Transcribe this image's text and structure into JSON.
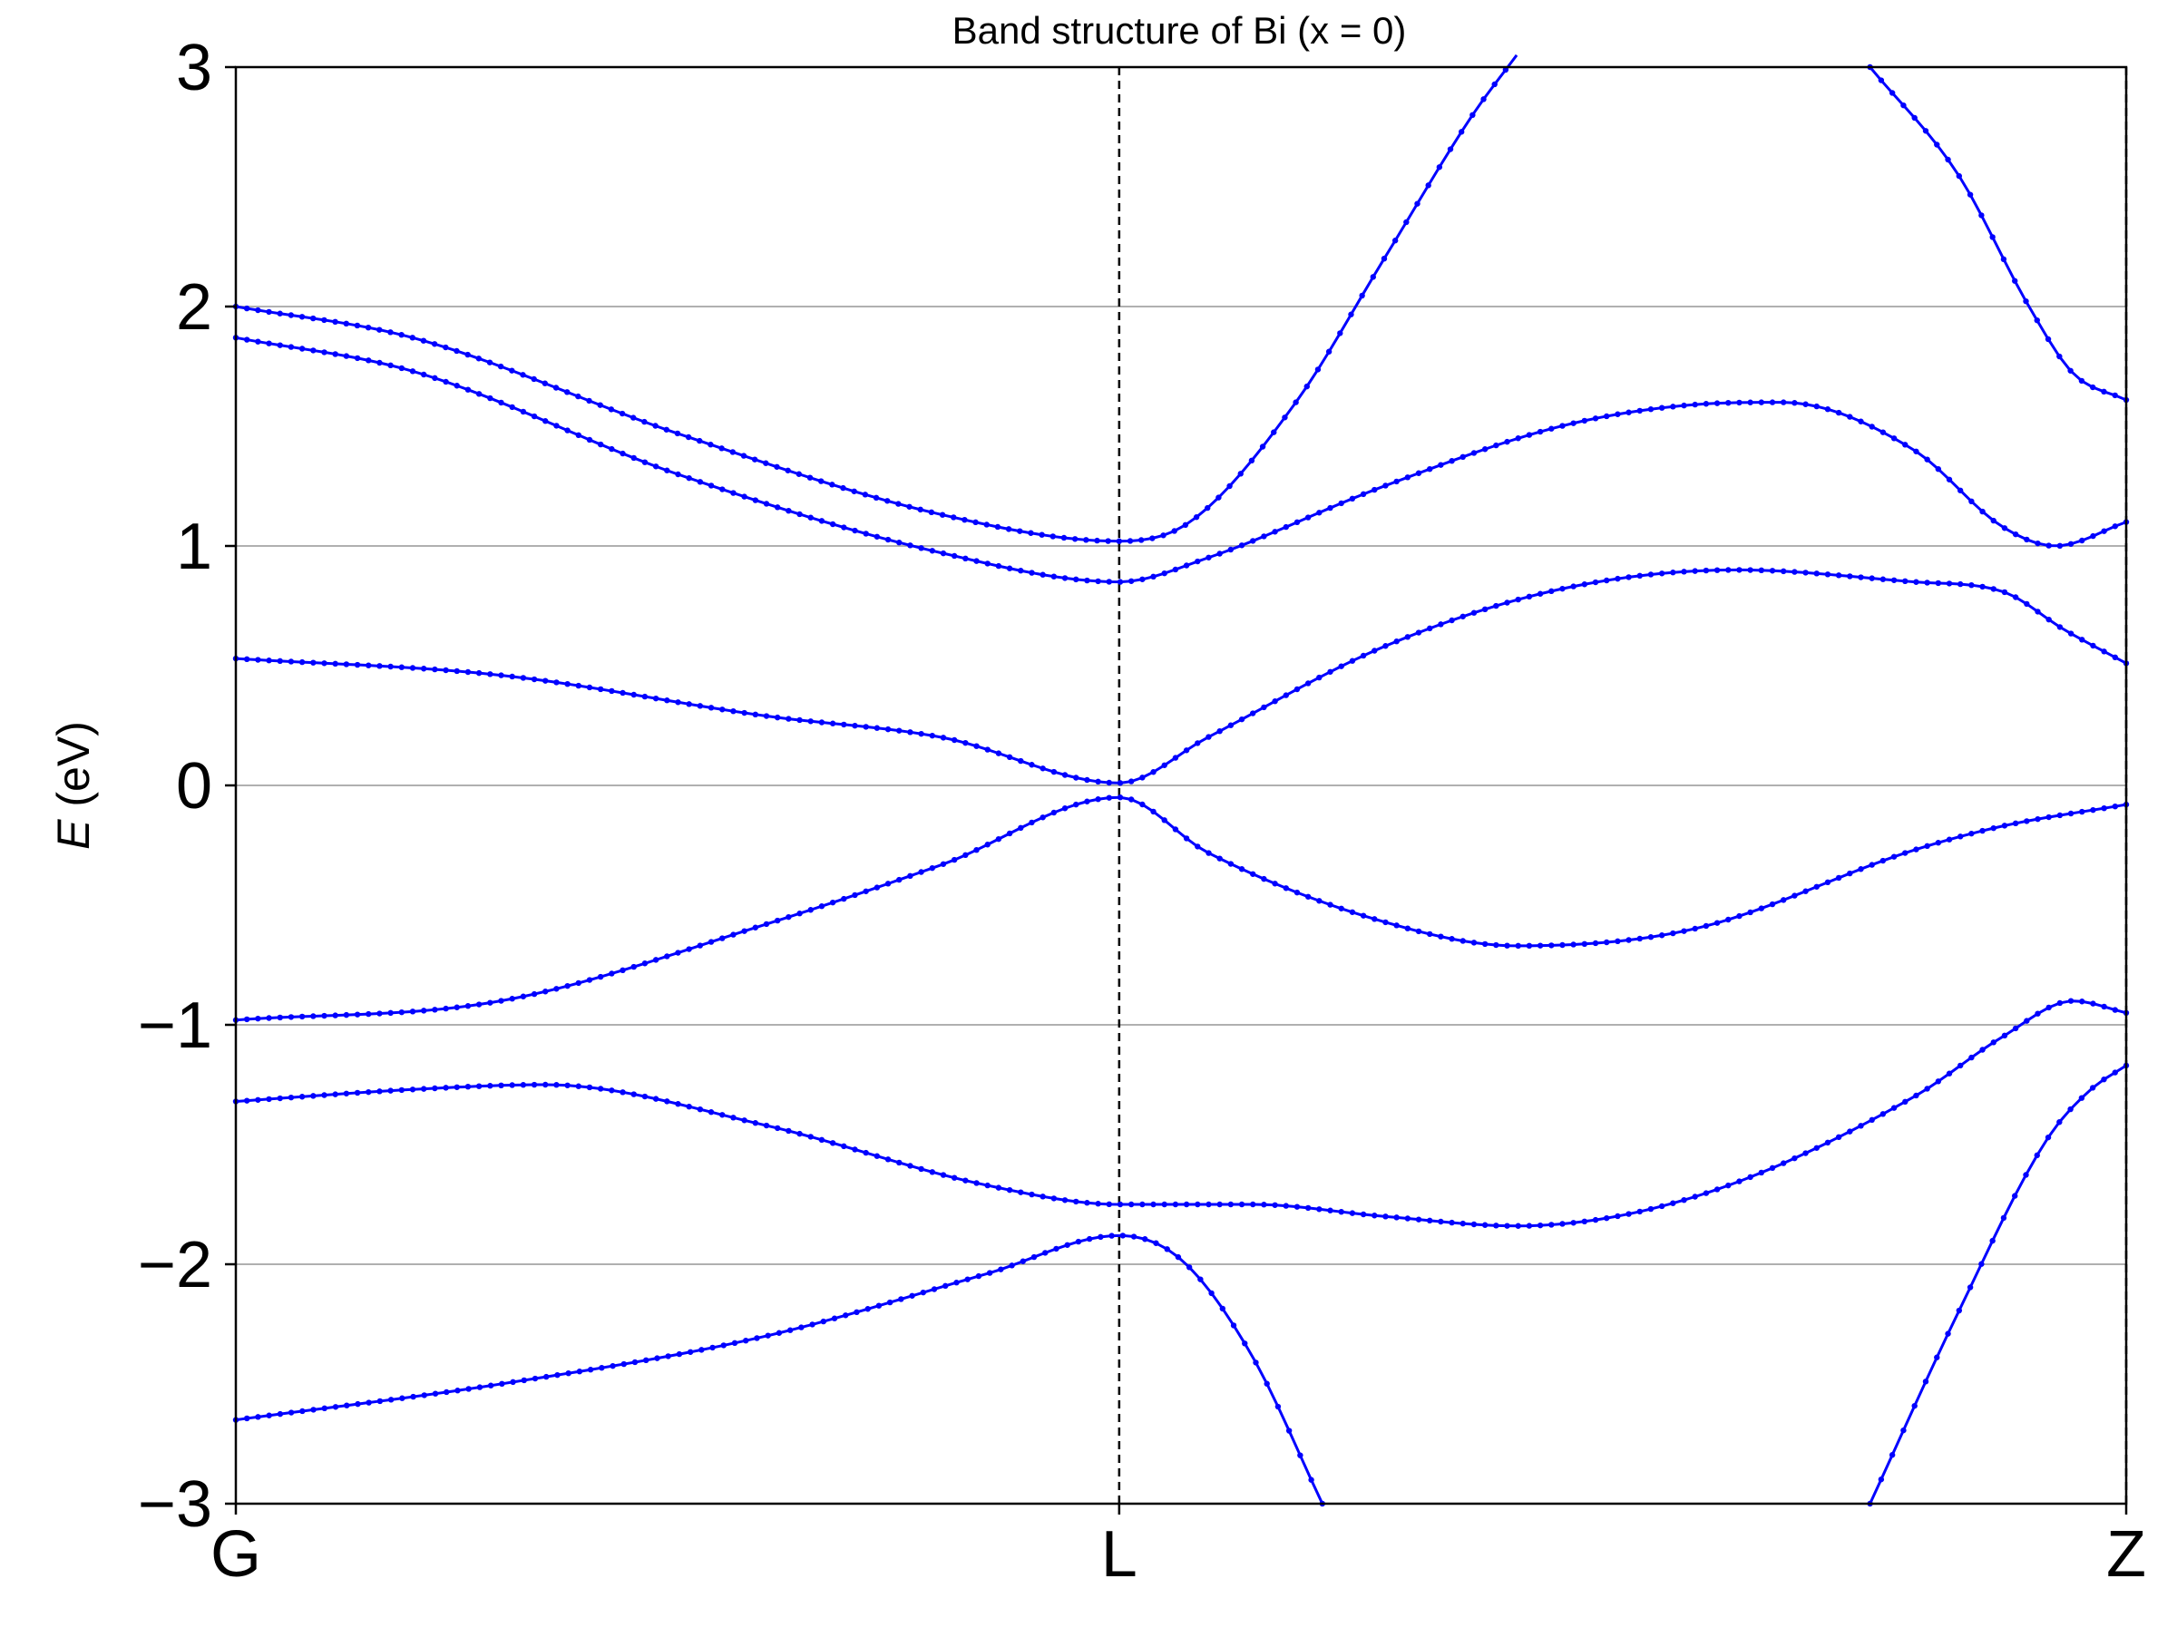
{
  "chart_data": {
    "type": "line",
    "title": "Band structure of Bi (x = 0)",
    "xlabel": "",
    "ylabel_symbol": "E",
    "ylabel_unit": " (eV)",
    "ylim": [
      -3,
      3
    ],
    "yticks": [
      3,
      2,
      1,
      0,
      -1,
      -2,
      -3
    ],
    "ytick_labels": [
      "3",
      "2",
      "1",
      "0",
      "−1",
      "−2",
      "−3"
    ],
    "kpath": {
      "labels": [
        "G",
        "L",
        "Z"
      ],
      "positions": [
        0,
        1,
        2.14
      ]
    },
    "xlim": [
      0,
      2.14
    ],
    "grid": "horizontal",
    "line_color": "#0000ff",
    "series": [
      {
        "values": [
          [
            0,
            2.0
          ],
          [
            0.2,
            1.87
          ],
          [
            0.5,
            1.47
          ],
          [
            0.8,
            1.13
          ],
          [
            1.0,
            1.02
          ],
          [
            1.08,
            1.1
          ],
          [
            1.2,
            1.6
          ],
          [
            1.3,
            2.2
          ],
          [
            1.4,
            2.8
          ],
          [
            1.45,
            3.05
          ]
        ]
      },
      {
        "values": [
          [
            0,
            1.87
          ],
          [
            0.2,
            1.73
          ],
          [
            0.5,
            1.3
          ],
          [
            0.8,
            0.97
          ],
          [
            1.0,
            0.85
          ],
          [
            1.1,
            0.95
          ],
          [
            1.3,
            1.25
          ],
          [
            1.5,
            1.5
          ],
          [
            1.65,
            1.59
          ],
          [
            1.75,
            1.6
          ],
          [
            1.9,
            1.4
          ],
          [
            2.0,
            1.08
          ],
          [
            2.06,
            1.0
          ],
          [
            2.14,
            1.1
          ]
        ]
      },
      {
        "values": [
          [
            0,
            0.53
          ],
          [
            0.3,
            0.46
          ],
          [
            0.6,
            0.29
          ],
          [
            0.8,
            0.2
          ],
          [
            1.0,
            0.01
          ],
          [
            1.1,
            0.2
          ],
          [
            1.3,
            0.58
          ],
          [
            1.5,
            0.82
          ],
          [
            1.7,
            0.9
          ],
          [
            1.9,
            0.85
          ],
          [
            2.0,
            0.81
          ],
          [
            2.07,
            0.65
          ],
          [
            2.14,
            0.51
          ]
        ]
      },
      {
        "values": [
          [
            0,
            -0.98
          ],
          [
            0.3,
            -0.9
          ],
          [
            0.6,
            -0.58
          ],
          [
            0.8,
            -0.33
          ],
          [
            1.0,
            -0.05
          ],
          [
            1.1,
            -0.28
          ],
          [
            1.3,
            -0.57
          ],
          [
            1.45,
            -0.67
          ],
          [
            1.65,
            -0.6
          ],
          [
            1.9,
            -0.27
          ],
          [
            2.0,
            -0.17
          ],
          [
            2.14,
            -0.08
          ]
        ]
      },
      {
        "values": [
          [
            0,
            -1.32
          ],
          [
            0.2,
            -1.27
          ],
          [
            0.35,
            -1.25
          ],
          [
            0.6,
            -1.42
          ],
          [
            0.85,
            -1.67
          ],
          [
            1.0,
            -1.75
          ],
          [
            1.15,
            -1.75
          ],
          [
            1.3,
            -1.8
          ],
          [
            1.45,
            -1.84
          ],
          [
            1.65,
            -1.72
          ],
          [
            1.9,
            -1.3
          ],
          [
            2.0,
            -1.05
          ],
          [
            2.08,
            -0.9
          ],
          [
            2.14,
            -0.95
          ]
        ]
      },
      {
        "values": [
          [
            0,
            -2.65
          ],
          [
            0.3,
            -2.5
          ],
          [
            0.6,
            -2.3
          ],
          [
            0.85,
            -2.04
          ],
          [
            1.0,
            -1.88
          ],
          [
            1.07,
            -1.98
          ],
          [
            1.15,
            -2.38
          ],
          [
            1.23,
            -3.0
          ]
        ]
      },
      {
        "values": [
          [
            1.85,
            -3.0
          ],
          [
            1.95,
            -2.2
          ],
          [
            2.05,
            -1.48
          ],
          [
            2.1,
            -1.27
          ],
          [
            2.14,
            -1.17
          ]
        ]
      },
      {
        "values": [
          [
            1.85,
            3.0
          ],
          [
            1.95,
            2.55
          ],
          [
            2.03,
            2.0
          ],
          [
            2.08,
            1.72
          ],
          [
            2.14,
            1.61
          ]
        ]
      }
    ]
  }
}
